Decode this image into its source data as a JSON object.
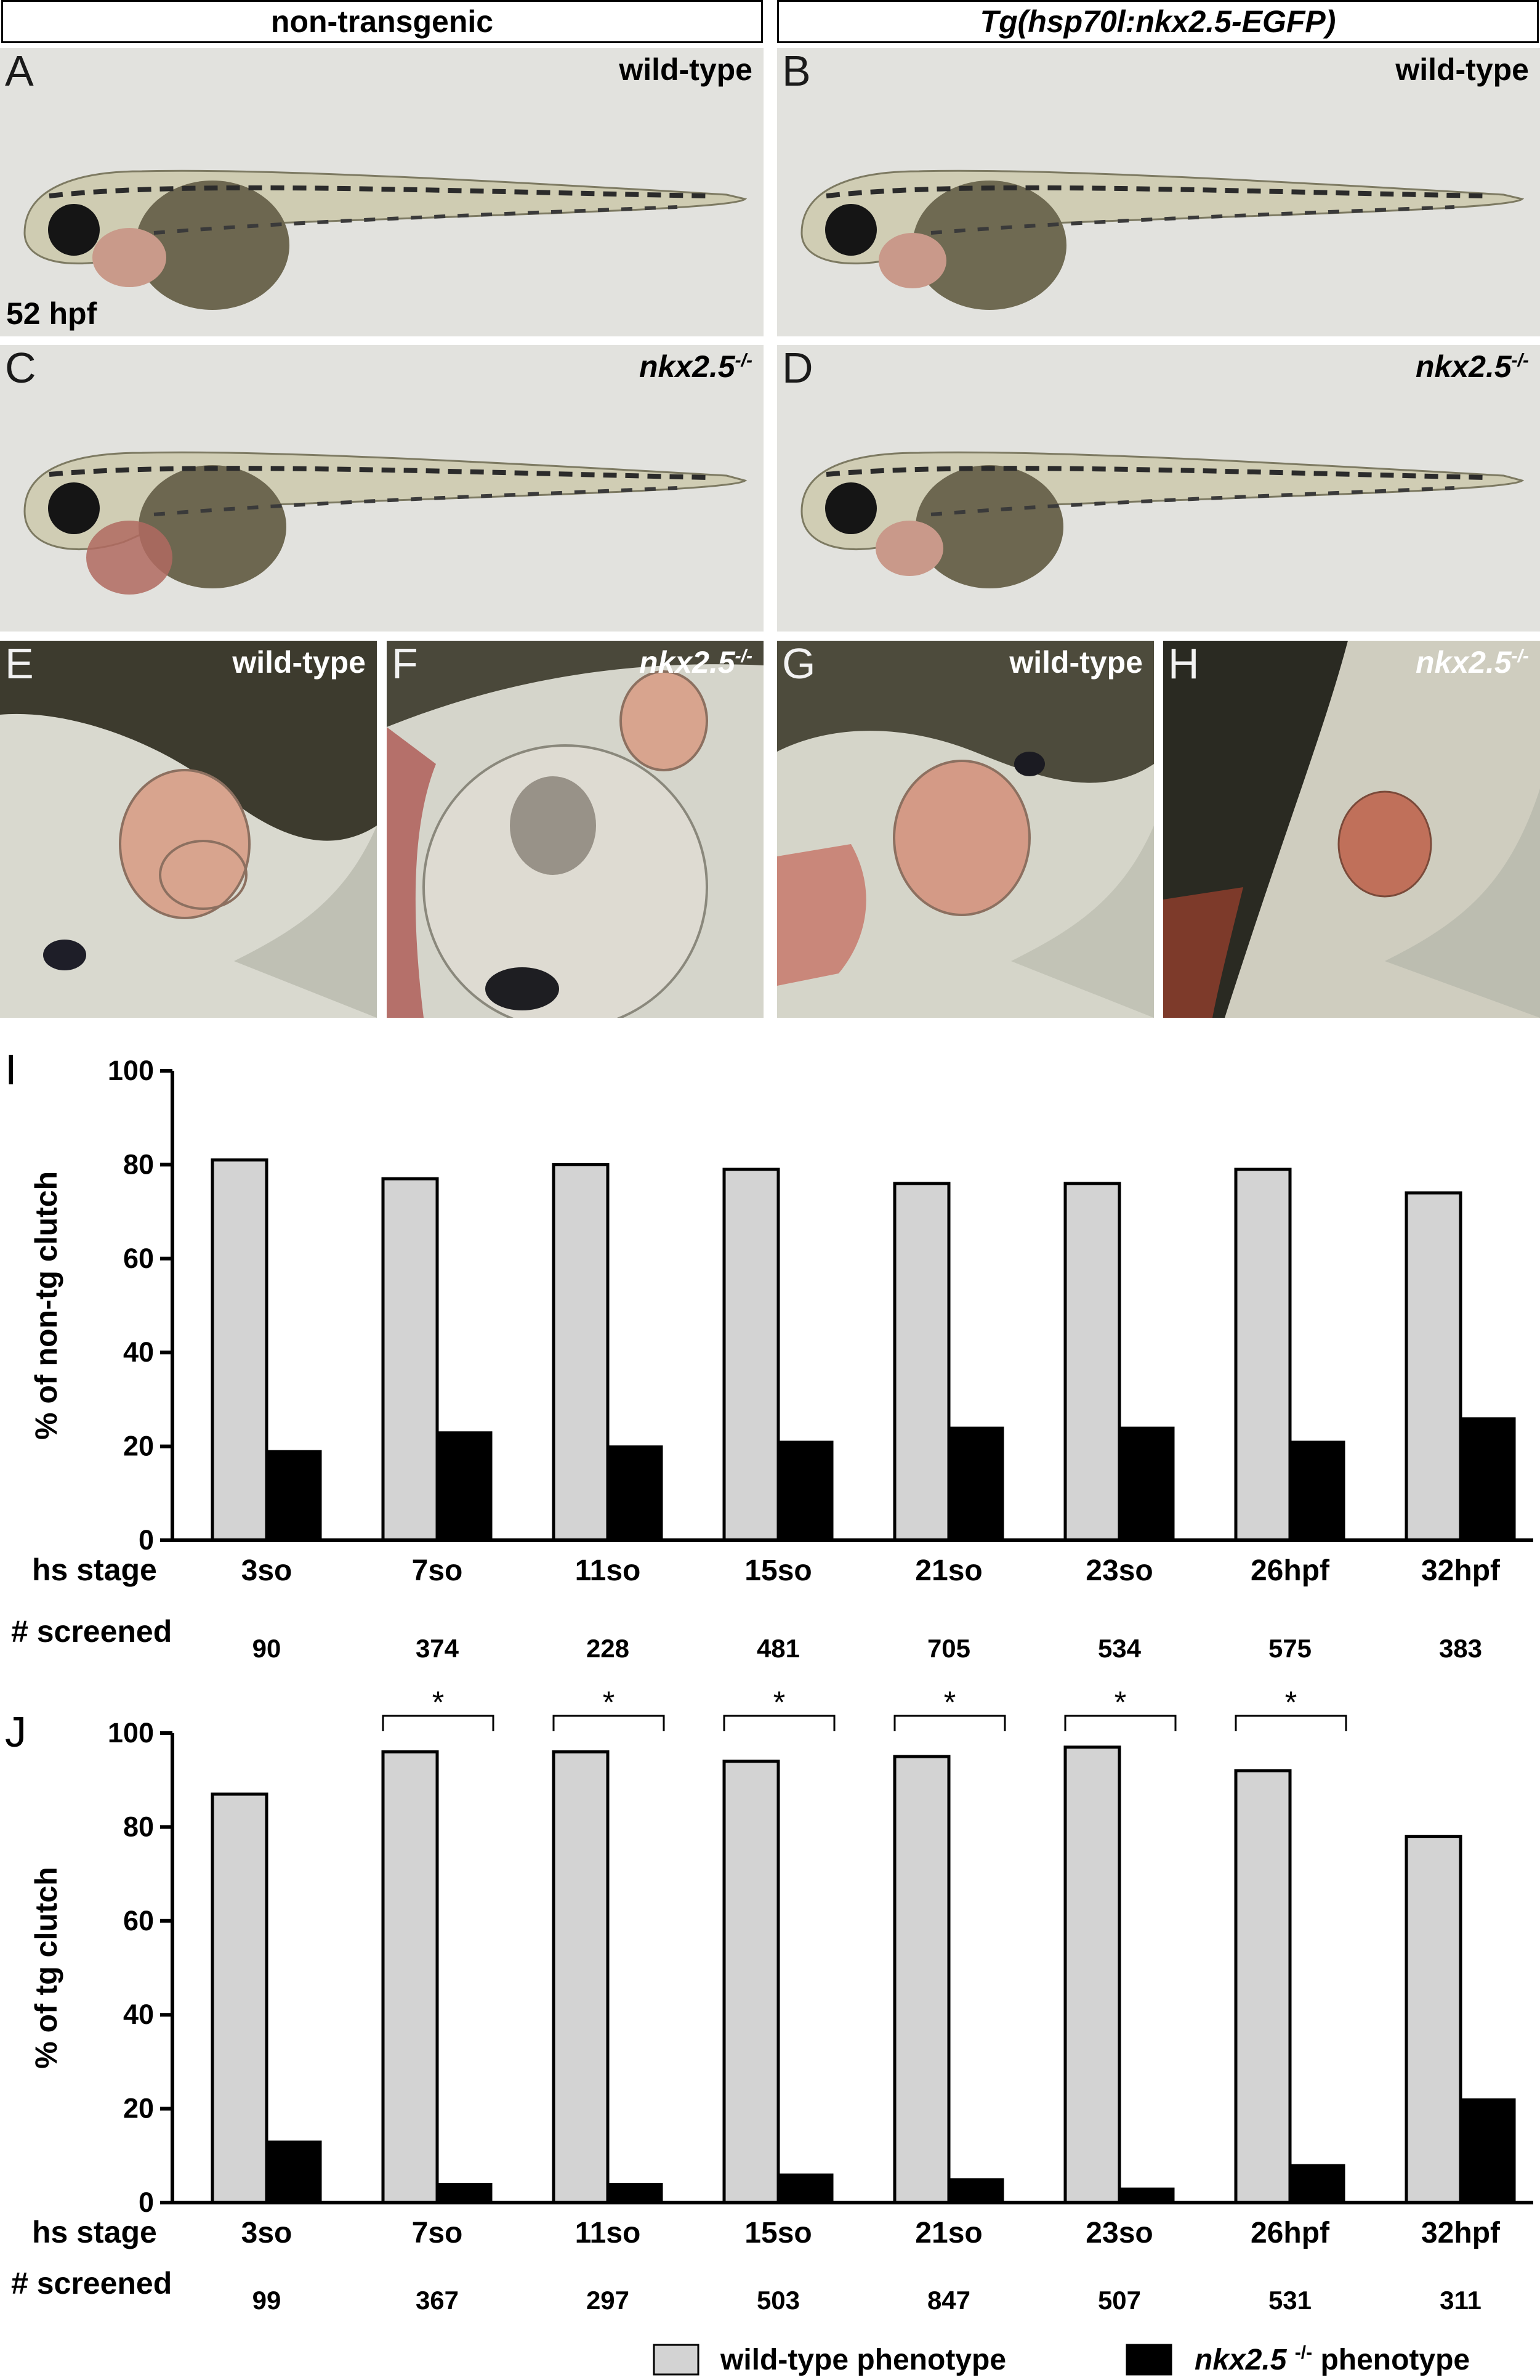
{
  "headers": {
    "left": "non-transgenic",
    "right": "Tg(hsp70l:nkx2.5-EGFP)"
  },
  "panels": [
    {
      "letter": "A",
      "genotype": "wild-type",
      "stage": "52 hpf"
    },
    {
      "letter": "B",
      "genotype": "wild-type"
    },
    {
      "letter": "C",
      "genotype": "nkx2.5",
      "genotype_sup": "-/-"
    },
    {
      "letter": "D",
      "genotype": "nkx2.5",
      "genotype_sup": "-/-"
    },
    {
      "letter": "E",
      "genotype": "wild-type"
    },
    {
      "letter": "F",
      "genotype": "nkx2.5",
      "genotype_sup": "-/-"
    },
    {
      "letter": "G",
      "genotype": "wild-type"
    },
    {
      "letter": "H",
      "genotype": "nkx2.5",
      "genotype_sup": "-/-"
    }
  ],
  "colors": {
    "wild_type_bar": "#d3d3d3",
    "mutant_bar": "#000000",
    "photo_background": "#e2e2de"
  },
  "row_labels": {
    "hs_stage": "hs stage",
    "screened": "# screened"
  },
  "legend": {
    "wild_type": "wild-type phenotype",
    "mutant_name": "nkx2.5",
    "mutant_sup": "-/-",
    "mutant_suffix": "phenotype"
  },
  "chart_data": [
    {
      "type": "bar",
      "panel_letter": "I",
      "ylabel": "% of non-tg clutch",
      "ylim": [
        0,
        100
      ],
      "yticks": [
        0,
        20,
        40,
        60,
        80,
        100
      ],
      "categories": [
        "3so",
        "7so",
        "11so",
        "15so",
        "21so",
        "23so",
        "26hpf",
        "32hpf"
      ],
      "screened": [
        "90",
        "374",
        "228",
        "481",
        "705",
        "534",
        "575",
        "383"
      ],
      "series": [
        {
          "name": "wild-type phenotype",
          "values": [
            81,
            77,
            80,
            79,
            76,
            76,
            79,
            74
          ]
        },
        {
          "name": "nkx2.5 -/- phenotype",
          "values": [
            19,
            23,
            20,
            21,
            24,
            24,
            21,
            26
          ]
        }
      ],
      "significance": [],
      "significance_marker": "*",
      "grid": false
    },
    {
      "type": "bar",
      "panel_letter": "J",
      "ylabel": "% of tg clutch",
      "ylim": [
        0,
        100
      ],
      "yticks": [
        0,
        20,
        40,
        60,
        80,
        100
      ],
      "categories": [
        "3so",
        "7so",
        "11so",
        "15so",
        "21so",
        "23so",
        "26hpf",
        "32hpf"
      ],
      "screened": [
        "99",
        "367",
        "297",
        "503",
        "847",
        "507",
        "531",
        "311"
      ],
      "series": [
        {
          "name": "wild-type phenotype",
          "values": [
            87,
            96,
            96,
            94,
            95,
            97,
            92,
            78
          ]
        },
        {
          "name": "nkx2.5 -/- phenotype",
          "values": [
            13,
            4,
            4,
            6,
            5,
            3,
            8,
            22
          ]
        }
      ],
      "significance": [
        1,
        2,
        3,
        4,
        5,
        6
      ],
      "significance_marker": "*",
      "grid": false
    }
  ]
}
